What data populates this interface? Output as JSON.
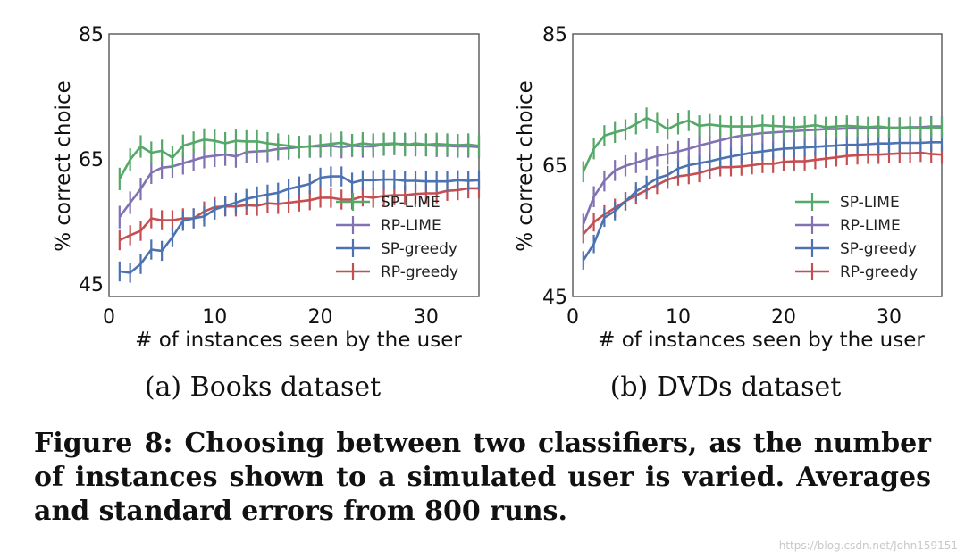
{
  "colors": {
    "SP-LIME": "#55a868",
    "RP-LIME": "#8172b2",
    "SP-greedy": "#4c72b0",
    "RP-greedy": "#c44e52"
  },
  "chart_data": [
    {
      "type": "line",
      "subcaption": "(a) Books dataset",
      "xlabel": "# of instances seen by the user",
      "ylabel": "% correct choice",
      "xlim": [
        0,
        35
      ],
      "ylim": [
        43,
        85
      ],
      "xticks": [
        0,
        10,
        20,
        30
      ],
      "yticks": [
        45,
        65,
        85
      ],
      "grid": false,
      "legend_position": "bottom-right",
      "error_bars": "standard error",
      "x": [
        1,
        2,
        3,
        4,
        5,
        6,
        7,
        8,
        9,
        10,
        11,
        12,
        13,
        14,
        15,
        16,
        17,
        18,
        19,
        20,
        21,
        22,
        23,
        24,
        25,
        26,
        27,
        28,
        29,
        30,
        31,
        32,
        33,
        34,
        35
      ],
      "series": [
        {
          "name": "SP-LIME",
          "err": 1.8,
          "values": [
            61.8,
            64.9,
            67.0,
            66.0,
            66.3,
            65.2,
            67.1,
            67.6,
            68.1,
            67.9,
            67.5,
            67.9,
            67.8,
            67.8,
            67.5,
            67.3,
            67.1,
            66.9,
            67.0,
            67.2,
            67.4,
            67.6,
            67.2,
            67.5,
            67.3,
            67.4,
            67.5,
            67.2,
            67.5,
            67.3,
            67.4,
            67.3,
            67.2,
            67.3,
            67.1
          ]
        },
        {
          "name": "RP-LIME",
          "err": 1.8,
          "values": [
            55.7,
            58.0,
            60.2,
            62.8,
            63.6,
            63.8,
            64.3,
            64.8,
            65.3,
            65.5,
            65.7,
            65.4,
            66.1,
            66.2,
            66.3,
            66.6,
            66.7,
            66.9,
            67.0,
            67.0,
            67.1,
            66.9,
            67.1,
            67.0,
            67.0,
            67.3,
            67.4,
            67.4,
            67.2,
            67.2,
            67.1,
            67.1,
            67.0,
            67.0,
            66.9
          ]
        },
        {
          "name": "SP-greedy",
          "err": 1.6,
          "values": [
            47.0,
            46.8,
            48.2,
            50.5,
            50.3,
            52.5,
            55.1,
            55.5,
            55.8,
            56.9,
            57.5,
            58.0,
            58.6,
            59.0,
            59.3,
            59.6,
            60.2,
            60.6,
            61.0,
            62.0,
            62.2,
            62.2,
            61.2,
            61.6,
            61.6,
            61.7,
            61.7,
            61.5,
            61.5,
            61.4,
            61.4,
            61.4,
            61.6,
            61.5,
            61.6
          ]
        },
        {
          "name": "RP-greedy",
          "err": 1.6,
          "values": [
            52.0,
            52.8,
            53.5,
            55.5,
            55.2,
            55.2,
            55.5,
            55.5,
            56.6,
            57.3,
            57.4,
            57.4,
            57.6,
            57.5,
            57.9,
            57.8,
            58.0,
            58.2,
            58.4,
            58.8,
            58.8,
            58.5,
            58.5,
            59.0,
            58.8,
            59.1,
            59.2,
            59.2,
            59.4,
            59.5,
            59.5,
            59.9,
            60.0,
            60.3,
            60.3
          ]
        }
      ]
    },
    {
      "type": "line",
      "subcaption": "(b) DVDs dataset",
      "xlabel": "# of instances seen by the user",
      "ylabel": "% correct choice",
      "xlim": [
        0,
        35
      ],
      "ylim": [
        45,
        85
      ],
      "xticks": [
        0,
        10,
        20,
        30
      ],
      "yticks": [
        45,
        65,
        85
      ],
      "grid": false,
      "legend_position": "bottom-right",
      "error_bars": "standard error",
      "x": [
        1,
        2,
        3,
        4,
        5,
        6,
        7,
        8,
        9,
        10,
        11,
        12,
        13,
        14,
        15,
        16,
        17,
        18,
        19,
        20,
        21,
        22,
        23,
        24,
        25,
        26,
        27,
        28,
        29,
        30,
        31,
        32,
        33,
        34,
        35
      ],
      "series": [
        {
          "name": "SP-LIME",
          "err": 1.6,
          "values": [
            64.0,
            67.5,
            69.5,
            70.0,
            70.4,
            71.3,
            72.2,
            71.5,
            70.5,
            71.3,
            71.8,
            71.0,
            71.2,
            71.0,
            70.9,
            70.9,
            70.9,
            71.1,
            71.0,
            70.9,
            70.8,
            70.9,
            71.1,
            70.8,
            70.9,
            71.0,
            70.9,
            70.8,
            70.9,
            70.7,
            70.7,
            70.8,
            70.6,
            70.8,
            70.7
          ]
        },
        {
          "name": "RP-LIME",
          "err": 1.6,
          "values": [
            56.0,
            60.2,
            62.6,
            64.2,
            64.9,
            65.4,
            65.9,
            66.4,
            66.7,
            67.1,
            67.5,
            68.0,
            68.4,
            68.8,
            69.2,
            69.5,
            69.7,
            69.9,
            70.0,
            70.1,
            70.2,
            70.3,
            70.4,
            70.5,
            70.5,
            70.6,
            70.6,
            70.6,
            70.7,
            70.7,
            70.7,
            70.8,
            70.8,
            70.9,
            70.9
          ]
        },
        {
          "name": "SP-greedy",
          "err": 1.4,
          "values": [
            50.5,
            53.0,
            57.0,
            58.0,
            59.5,
            61.0,
            62.0,
            63.0,
            63.5,
            64.5,
            65.0,
            65.3,
            65.6,
            66.0,
            66.3,
            66.6,
            66.9,
            67.1,
            67.3,
            67.5,
            67.6,
            67.7,
            67.8,
            67.9,
            68.0,
            68.1,
            68.1,
            68.2,
            68.3,
            68.3,
            68.4,
            68.4,
            68.4,
            68.5,
            68.5
          ]
        },
        {
          "name": "RP-greedy",
          "err": 1.4,
          "values": [
            54.5,
            56.3,
            57.5,
            58.5,
            59.5,
            60.4,
            61.2,
            62.0,
            62.8,
            63.3,
            63.5,
            63.8,
            64.3,
            64.7,
            64.7,
            64.8,
            65.0,
            65.2,
            65.2,
            65.5,
            65.6,
            65.6,
            65.8,
            66.0,
            66.2,
            66.4,
            66.5,
            66.6,
            66.6,
            66.7,
            66.8,
            66.8,
            66.9,
            66.7,
            66.6
          ]
        }
      ]
    }
  ],
  "figure_caption": "Figure 8:  Choosing between two classifiers, as the number of instances shown to a simulated user is varied.  Averages and standard errors from 800 runs.",
  "watermark": "https://blog.csdn.net/John159151"
}
